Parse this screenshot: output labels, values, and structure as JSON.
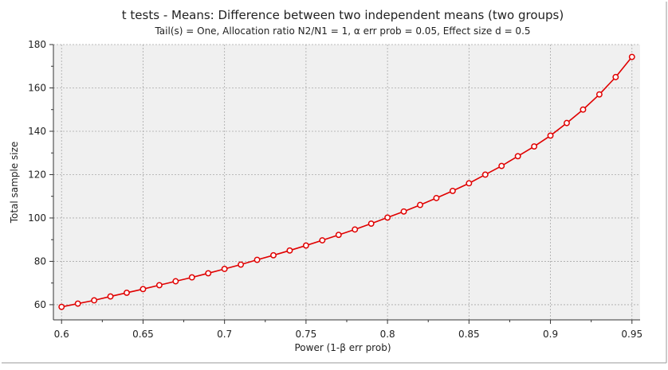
{
  "chart_data": {
    "type": "line",
    "title": "t tests - Means: Difference between two independent means (two groups)",
    "subtitle": "Tail(s) = One, Allocation ratio N2/N1 = 1, α err prob = 0.05, Effect size d = 0.5",
    "xlabel": "Power (1-β err prob)",
    "ylabel": "Total sample size",
    "xlim": [
      0.595,
      0.955
    ],
    "ylim": [
      53,
      180
    ],
    "x_ticks": [
      "0.6",
      "0.65",
      "0.7",
      "0.75",
      "0.8",
      "0.85",
      "0.9",
      "0.95"
    ],
    "y_ticks": [
      "60",
      "80",
      "100",
      "120",
      "140",
      "160",
      "180"
    ],
    "x_tick_values": [
      0.6,
      0.65,
      0.7,
      0.75,
      0.8,
      0.85,
      0.9,
      0.95
    ],
    "y_tick_values": [
      60,
      80,
      100,
      120,
      140,
      160,
      180
    ],
    "grid": true,
    "line_color": "#e00000",
    "marker_fill": "#ffffff",
    "plot_background": "#f0f0f0",
    "series": [
      {
        "x": [
          0.6,
          0.61,
          0.62,
          0.63,
          0.64,
          0.65,
          0.66,
          0.67,
          0.68,
          0.69,
          0.7,
          0.71,
          0.72,
          0.73,
          0.74,
          0.75,
          0.76,
          0.77,
          0.78,
          0.79,
          0.8,
          0.81,
          0.82,
          0.83,
          0.84,
          0.85,
          0.86,
          0.87,
          0.88,
          0.89,
          0.9,
          0.91,
          0.92,
          0.93,
          0.94,
          0.95
        ],
        "values": [
          59,
          60.5,
          62,
          63.8,
          65.5,
          67.2,
          69,
          70.8,
          72.6,
          74.5,
          76.5,
          78.5,
          80.7,
          82.8,
          85,
          87.3,
          89.7,
          92.2,
          94.7,
          97.4,
          100.2,
          103,
          106,
          109.2,
          112.5,
          116,
          120,
          124,
          128.5,
          133,
          138,
          143.8,
          150,
          157,
          165,
          174.3
        ]
      }
    ]
  }
}
